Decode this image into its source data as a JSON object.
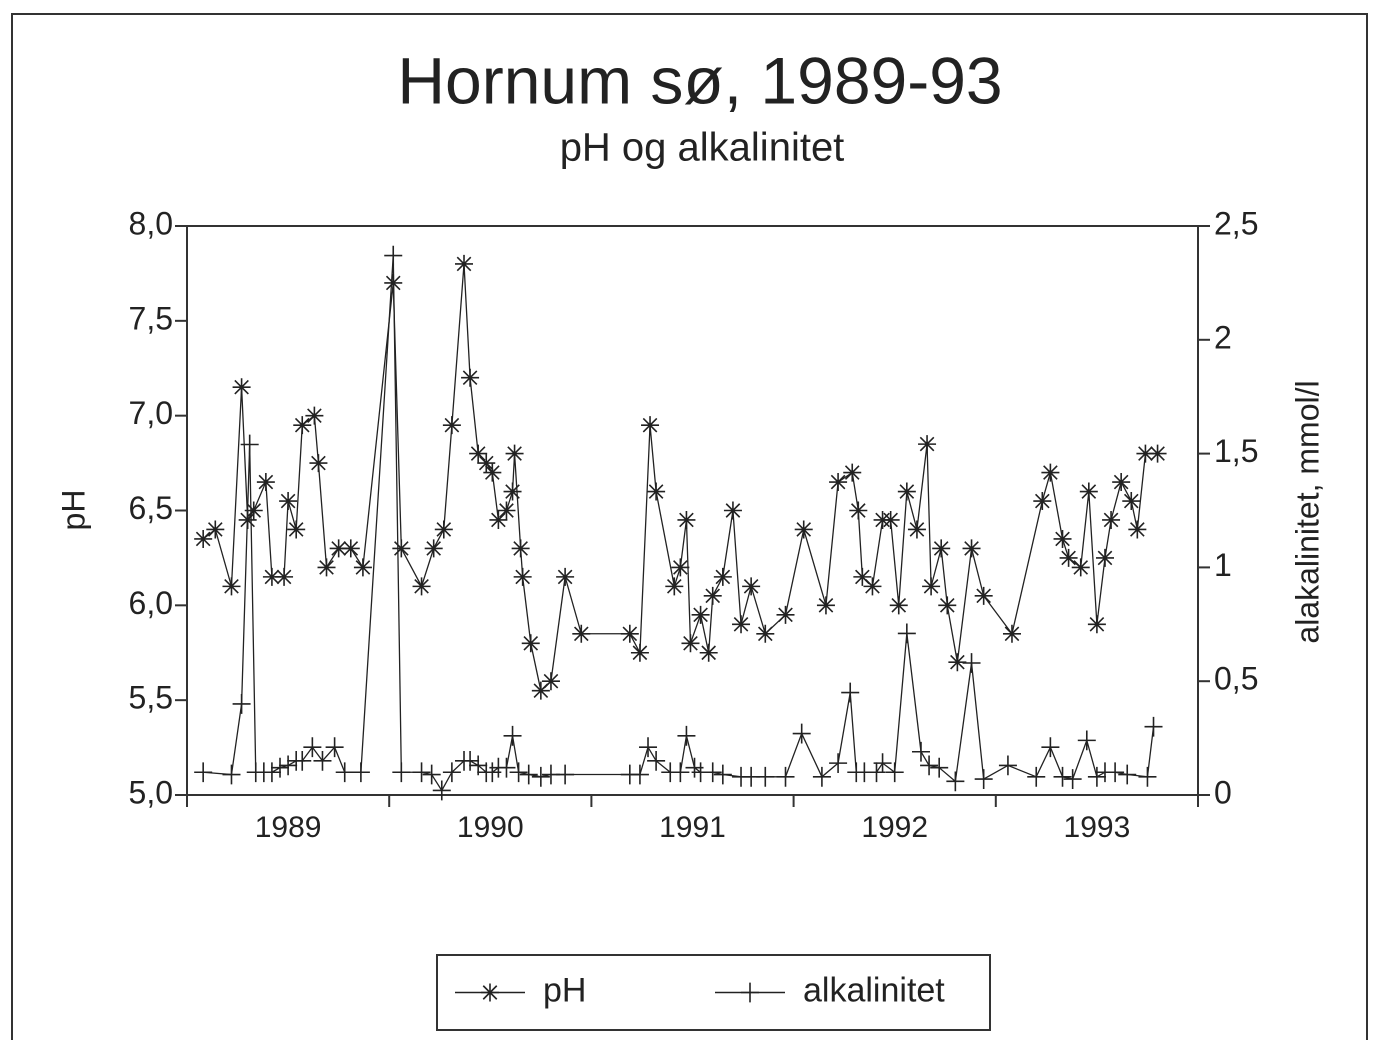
{
  "chart_data": {
    "type": "line",
    "title": "Hornum sø, 1989-93",
    "subtitle": "pH og alkalinitet",
    "ylabel": "pH",
    "y2label": "alakalinitet, mmol/l",
    "xlim": [
      1989,
      1994
    ],
    "xticks": [
      1989,
      1990,
      1991,
      1992,
      1993,
      1994
    ],
    "xlabels": [
      {
        "value": 1989.5,
        "label": "1989"
      },
      {
        "value": 1990.5,
        "label": "1990"
      },
      {
        "value": 1991.5,
        "label": "1991"
      },
      {
        "value": 1992.5,
        "label": "1992"
      },
      {
        "value": 1993.5,
        "label": "1993"
      }
    ],
    "ylim": [
      5,
      8
    ],
    "yticks": [
      {
        "value": 5,
        "label": "5,0"
      },
      {
        "value": 5.5,
        "label": "5,5"
      },
      {
        "value": 6,
        "label": "6,0"
      },
      {
        "value": 6.5,
        "label": "6,5"
      },
      {
        "value": 7,
        "label": "7,0"
      },
      {
        "value": 7.5,
        "label": "7,5"
      },
      {
        "value": 8,
        "label": "8,0"
      }
    ],
    "y2lim": [
      0,
      2.5
    ],
    "y2ticks": [
      0,
      {
        "value": 0.5,
        "label": "0,5"
      },
      1,
      {
        "value": 1.5,
        "label": "1,5"
      },
      2,
      {
        "value": 2.5,
        "label": "2,5"
      }
    ],
    "legend": "bottom",
    "series": [
      {
        "name": "pH",
        "color": "#222",
        "marker": "asterisk",
        "x": [
          1989.08,
          1989.14,
          1989.22,
          1989.27,
          1989.3,
          1989.33,
          1989.39,
          1989.42,
          1989.48,
          1989.5,
          1989.54,
          1989.57,
          1989.63,
          1989.65,
          1989.69,
          1989.75,
          1989.81,
          1989.87,
          1990.02,
          1990.06,
          1990.16,
          1990.22,
          1990.27,
          1990.31,
          1990.37,
          1990.4,
          1990.44,
          1990.48,
          1990.51,
          1990.54,
          1990.58,
          1990.61,
          1990.62,
          1990.65,
          1990.66,
          1990.7,
          1990.75,
          1990.8,
          1990.87,
          1990.95,
          1991.19,
          1991.24,
          1991.29,
          1991.32,
          1991.41,
          1991.44,
          1991.47,
          1991.49,
          1991.54,
          1991.58,
          1991.6,
          1991.65,
          1991.7,
          1991.74,
          1991.79,
          1991.86,
          1991.96,
          1992.05,
          1992.16,
          1992.22,
          1992.29,
          1992.32,
          1992.34,
          1992.39,
          1992.44,
          1992.48,
          1992.52,
          1992.56,
          1992.61,
          1992.66,
          1992.68,
          1992.73,
          1992.76,
          1992.81,
          1992.88,
          1992.94,
          1993.08,
          1993.23,
          1993.27,
          1993.33,
          1993.36,
          1993.42,
          1993.46,
          1993.5,
          1993.54,
          1993.57,
          1993.62,
          1993.67,
          1993.7,
          1993.74,
          1993.8
        ],
        "values": [
          6.35,
          6.4,
          6.1,
          7.15,
          6.45,
          6.5,
          6.65,
          6.15,
          6.15,
          6.55,
          6.4,
          6.95,
          7.0,
          6.75,
          6.2,
          6.3,
          6.3,
          6.2,
          7.7,
          6.3,
          6.1,
          6.3,
          6.4,
          6.95,
          7.8,
          7.2,
          6.8,
          6.75,
          6.7,
          6.45,
          6.5,
          6.6,
          6.8,
          6.3,
          6.15,
          5.8,
          5.55,
          5.6,
          6.15,
          5.85,
          5.85,
          5.75,
          6.95,
          6.6,
          6.1,
          6.2,
          6.45,
          5.8,
          5.95,
          5.75,
          6.05,
          6.15,
          6.5,
          5.9,
          6.1,
          5.85,
          5.95,
          6.4,
          6.0,
          6.65,
          6.7,
          6.5,
          6.15,
          6.1,
          6.45,
          6.45,
          6.0,
          6.6,
          6.4,
          6.85,
          6.1,
          6.3,
          6.0,
          5.7,
          6.3,
          6.05,
          5.85,
          6.55,
          6.7,
          6.35,
          6.25,
          6.2,
          6.6,
          5.9,
          6.25,
          6.45,
          6.65,
          6.55,
          6.4,
          6.8,
          6.8
        ]
      },
      {
        "name": "alkalinitet",
        "color": "#222",
        "marker": "plus",
        "axis": "y2",
        "x": [
          1989.08,
          1989.22,
          1989.27,
          1989.31,
          1989.34,
          1989.38,
          1989.42,
          1989.46,
          1989.5,
          1989.54,
          1989.57,
          1989.62,
          1989.67,
          1989.73,
          1989.78,
          1989.86,
          1990.02,
          1990.06,
          1990.16,
          1990.21,
          1990.26,
          1990.31,
          1990.37,
          1990.4,
          1990.44,
          1990.48,
          1990.51,
          1990.54,
          1990.58,
          1990.61,
          1990.64,
          1990.69,
          1990.75,
          1990.8,
          1990.87,
          1991.19,
          1991.24,
          1991.28,
          1991.32,
          1991.39,
          1991.44,
          1991.47,
          1991.51,
          1991.54,
          1991.6,
          1991.65,
          1991.74,
          1991.79,
          1991.86,
          1991.96,
          1992.04,
          1992.14,
          1992.22,
          1992.28,
          1992.31,
          1992.35,
          1992.41,
          1992.44,
          1992.5,
          1992.56,
          1992.63,
          1992.67,
          1992.72,
          1992.8,
          1992.88,
          1992.94,
          1993.06,
          1993.2,
          1993.27,
          1993.33,
          1993.38,
          1993.45,
          1993.5,
          1993.54,
          1993.59,
          1993.65,
          1993.75,
          1993.78
        ],
        "values": [
          0.1,
          0.09,
          0.4,
          1.54,
          0.1,
          0.1,
          0.1,
          0.12,
          0.13,
          0.15,
          0.15,
          0.21,
          0.15,
          0.21,
          0.1,
          0.1,
          2.37,
          0.1,
          0.1,
          0.09,
          0.02,
          0.1,
          0.15,
          0.15,
          0.13,
          0.1,
          0.1,
          0.12,
          0.12,
          0.26,
          0.1,
          0.09,
          0.08,
          0.09,
          0.09,
          0.09,
          0.09,
          0.21,
          0.15,
          0.1,
          0.1,
          0.26,
          0.12,
          0.1,
          0.1,
          0.09,
          0.08,
          0.08,
          0.08,
          0.08,
          0.27,
          0.08,
          0.14,
          0.45,
          0.1,
          0.1,
          0.1,
          0.14,
          0.1,
          0.71,
          0.19,
          0.13,
          0.12,
          0.06,
          0.58,
          0.07,
          0.13,
          0.08,
          0.21,
          0.08,
          0.07,
          0.24,
          0.08,
          0.1,
          0.1,
          0.09,
          0.08,
          0.3
        ]
      }
    ]
  }
}
